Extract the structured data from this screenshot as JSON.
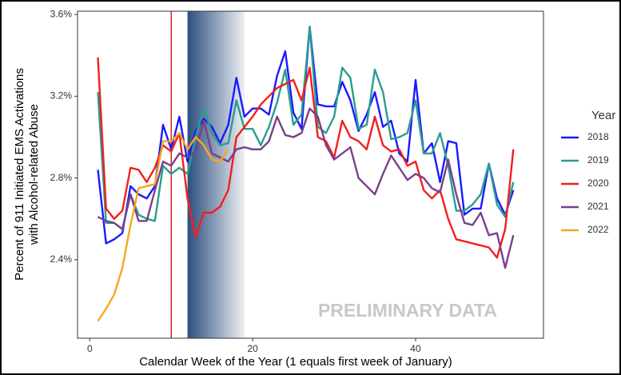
{
  "chart_data": {
    "type": "line",
    "xlabel": "Calendar Week of the Year (1 equals first week of January)",
    "ylabel": [
      "Percent of 911 Initiated EMS Activations",
      "with Alcohol-related Abuse"
    ],
    "annotation": "PRELIMINARY DATA",
    "legend_title": "Year",
    "legend": "right",
    "grid": false,
    "xlim": [
      -1.5,
      55.7
    ],
    "ylim": [
      2.016,
      3.616
    ],
    "xticks": [
      0,
      20,
      40
    ],
    "yticks": [
      {
        "value": 2.4,
        "label": "2.4%"
      },
      {
        "value": 2.8,
        "label": "2.8%"
      },
      {
        "value": 3.2,
        "label": "3.2%"
      },
      {
        "value": 3.6,
        "label": "3.6%"
      }
    ],
    "vlines": [
      10
    ],
    "vline_color": "#cc0000",
    "shade": [
      12,
      19
    ],
    "x": [
      1,
      2,
      3,
      4,
      5,
      6,
      7,
      8,
      9,
      10,
      11,
      12,
      13,
      14,
      15,
      16,
      17,
      18,
      19,
      20,
      21,
      22,
      23,
      24,
      25,
      26,
      27,
      28,
      29,
      30,
      31,
      32,
      33,
      34,
      35,
      36,
      37,
      38,
      39,
      40,
      41,
      42,
      43,
      44,
      45,
      46,
      47,
      48,
      49,
      50,
      51,
      52
    ],
    "series": [
      {
        "name": "2018",
        "color": "#1a1aff",
        "values": [
          2.84,
          2.48,
          2.5,
          2.53,
          2.76,
          2.72,
          2.7,
          2.76,
          3.06,
          2.94,
          3.1,
          2.88,
          3.03,
          3.09,
          3.05,
          2.97,
          3.06,
          3.29,
          3.1,
          3.14,
          3.14,
          3.11,
          3.3,
          3.42,
          3.12,
          3.04,
          3.54,
          3.16,
          3.15,
          3.15,
          3.27,
          3.18,
          3.03,
          3.11,
          3.22,
          3.05,
          3.08,
          2.92,
          2.88,
          3.28,
          2.92,
          2.97,
          2.78,
          2.98,
          2.97,
          2.62,
          2.65,
          2.65,
          2.87,
          2.7,
          2.62,
          2.74
        ]
      },
      {
        "name": "2019",
        "color": "#2a9d8f",
        "values": [
          3.22,
          2.58,
          2.58,
          2.55,
          2.72,
          2.62,
          2.6,
          2.59,
          2.86,
          2.82,
          2.85,
          2.82,
          3.0,
          3.14,
          3.02,
          2.96,
          2.97,
          3.18,
          3.04,
          3.04,
          2.96,
          3.05,
          3.17,
          3.33,
          3.06,
          3.11,
          3.54,
          3.05,
          3.02,
          3.1,
          3.34,
          3.29,
          3.04,
          3.06,
          3.33,
          3.22,
          2.99,
          3.0,
          3.02,
          3.18,
          2.92,
          2.92,
          3.02,
          2.86,
          2.64,
          2.64,
          2.67,
          2.72,
          2.87,
          2.67,
          2.61,
          2.78
        ]
      },
      {
        "name": "2020",
        "color": "#f0201e",
        "values": [
          3.39,
          2.65,
          2.6,
          2.64,
          2.85,
          2.84,
          2.78,
          2.85,
          2.96,
          2.93,
          3.02,
          2.7,
          2.51,
          2.63,
          2.63,
          2.66,
          2.74,
          3.0,
          3.05,
          3.1,
          3.16,
          3.2,
          3.24,
          3.26,
          3.28,
          3.18,
          3.34,
          3.0,
          2.98,
          2.9,
          3.08,
          3.0,
          2.98,
          2.94,
          3.1,
          2.96,
          2.93,
          2.94,
          2.86,
          2.88,
          2.74,
          2.7,
          2.74,
          2.6,
          2.5,
          2.49,
          2.48,
          2.47,
          2.46,
          2.41,
          2.55,
          2.94
        ]
      },
      {
        "name": "2021",
        "color": "#7b3f8c",
        "values": [
          2.61,
          2.59,
          2.58,
          2.55,
          2.72,
          2.59,
          2.59,
          2.74,
          2.88,
          2.86,
          2.92,
          2.9,
          2.93,
          3.08,
          2.92,
          2.9,
          2.88,
          2.94,
          2.95,
          2.94,
          2.94,
          2.98,
          3.1,
          3.01,
          3.0,
          3.02,
          3.14,
          3.1,
          2.96,
          2.89,
          2.92,
          2.95,
          2.8,
          2.76,
          2.72,
          2.82,
          2.91,
          2.85,
          2.79,
          2.82,
          2.8,
          2.75,
          2.73,
          2.89,
          2.72,
          2.58,
          2.57,
          2.63,
          2.52,
          2.53,
          2.36,
          2.52
        ]
      },
      {
        "name": "2022",
        "color": "#f5a81c",
        "values": [
          2.1,
          2.16,
          2.23,
          2.36,
          2.57,
          2.75,
          2.76,
          2.77,
          2.98,
          2.98,
          3.02,
          2.94,
          3.0,
          2.96,
          2.89,
          2.88,
          2.94,
          null,
          null,
          null,
          null,
          null,
          null,
          null,
          null,
          null,
          null,
          null,
          null,
          null,
          null,
          null,
          null,
          null,
          null,
          null,
          null,
          null,
          null,
          null,
          null,
          null,
          null,
          null,
          null,
          null,
          null,
          null,
          null,
          null,
          null,
          null
        ]
      }
    ]
  }
}
